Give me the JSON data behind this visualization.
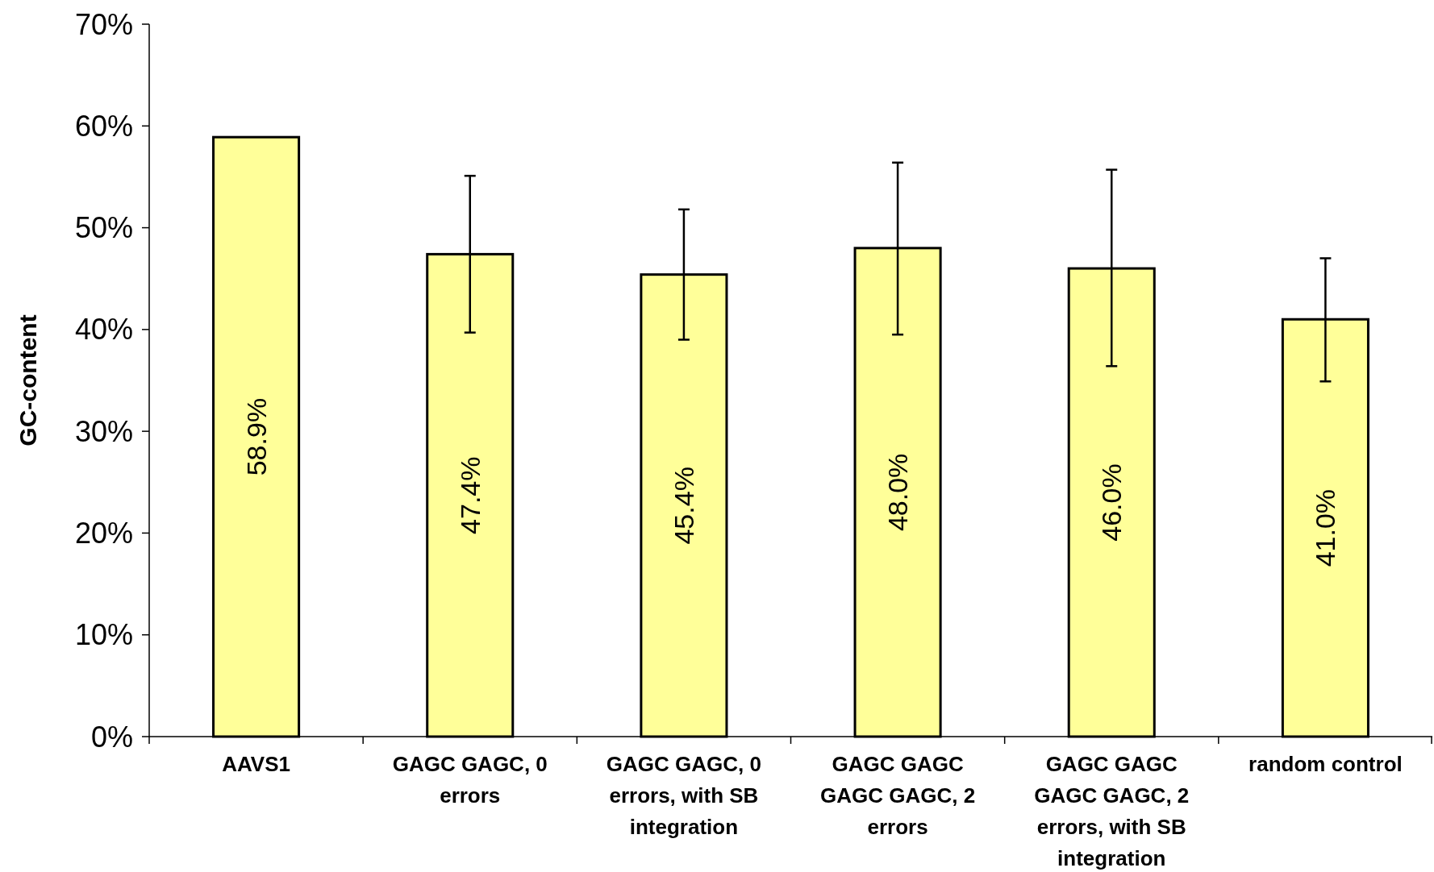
{
  "chart_data": {
    "type": "bar",
    "ylabel": "GC-content",
    "categories": [
      "AAVS1",
      "GAGC GAGC, 0 errors",
      "GAGC GAGC, 0 errors, with SB integration",
      "GAGC GAGC GAGC GAGC, 2 errors",
      "GAGC GAGC GAGC GAGC, 2 errors, with SB integration",
      "random control"
    ],
    "values": [
      58.9,
      47.4,
      45.4,
      48.0,
      46.0,
      41.0
    ],
    "errors": [
      null,
      [
        39.7,
        55.1
      ],
      [
        39.0,
        51.8
      ],
      [
        39.5,
        56.4
      ],
      [
        36.4,
        55.7
      ],
      [
        34.9,
        47.0
      ]
    ],
    "value_labels": [
      "58.9%",
      "47.4%",
      "45.4%",
      "48.0%",
      "46.0%",
      "41.0%"
    ],
    "color": "#ffff99",
    "ylim": [
      0,
      70
    ],
    "yticks": [
      {
        "value": 0,
        "label": "0%"
      },
      {
        "value": 10,
        "label": "10%"
      },
      {
        "value": 20,
        "label": "20%"
      },
      {
        "value": 30,
        "label": "30%"
      },
      {
        "value": 40,
        "label": "40%"
      },
      {
        "value": 50,
        "label": "50%"
      },
      {
        "value": 60,
        "label": "60%"
      },
      {
        "value": 70,
        "label": "70%"
      }
    ]
  }
}
